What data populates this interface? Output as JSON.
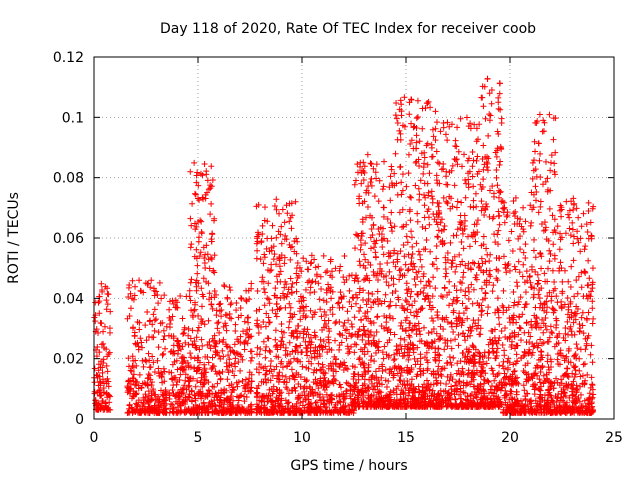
{
  "chart_data": {
    "type": "scatter",
    "title": "Day 118 of 2020, Rate Of TEC Index for receiver coob",
    "xlabel": "GPS time / hours",
    "ylabel": "ROTI / TECUs",
    "xlim": [
      0,
      25
    ],
    "ylim": [
      0,
      0.12
    ],
    "x_ticks": [
      0,
      5,
      10,
      15,
      20,
      25
    ],
    "x_tick_labels": [
      "0",
      "5",
      "10",
      "15",
      "20",
      "25"
    ],
    "y_ticks": [
      0,
      0.02,
      0.04,
      0.06,
      0.08,
      0.1,
      0.12
    ],
    "y_tick_labels": [
      "0",
      "0.02",
      "0.04",
      "0.06",
      "0.08",
      "0.1",
      "0.12"
    ],
    "grid": true,
    "marker": "+",
    "series_color": "#ff0000",
    "series": [
      {
        "name": "ROTI",
        "segments": [
          {
            "x_start": 0.0,
            "x_end": 0.8,
            "y_low": 0.003,
            "y_high": 0.045
          },
          {
            "x_start": 1.6,
            "x_end": 3.5,
            "y_low": 0.002,
            "y_high": 0.046
          },
          {
            "x_start": 3.6,
            "x_end": 4.6,
            "y_low": 0.002,
            "y_high": 0.042
          },
          {
            "x_start": 4.6,
            "x_end": 5.8,
            "y_low": 0.002,
            "y_high": 0.085
          },
          {
            "x_start": 5.8,
            "x_end": 7.6,
            "y_low": 0.002,
            "y_high": 0.045
          },
          {
            "x_start": 7.8,
            "x_end": 9.8,
            "y_low": 0.002,
            "y_high": 0.073
          },
          {
            "x_start": 9.8,
            "x_end": 12.5,
            "y_low": 0.002,
            "y_high": 0.055
          },
          {
            "x_start": 12.5,
            "x_end": 14.5,
            "y_low": 0.004,
            "y_high": 0.09
          },
          {
            "x_start": 14.5,
            "x_end": 16.5,
            "y_low": 0.004,
            "y_high": 0.107
          },
          {
            "x_start": 16.5,
            "x_end": 18.6,
            "y_low": 0.004,
            "y_high": 0.1
          },
          {
            "x_start": 18.6,
            "x_end": 19.6,
            "y_low": 0.004,
            "y_high": 0.113
          },
          {
            "x_start": 19.6,
            "x_end": 21.0,
            "y_low": 0.002,
            "y_high": 0.075
          },
          {
            "x_start": 21.0,
            "x_end": 22.2,
            "y_low": 0.002,
            "y_high": 0.101
          },
          {
            "x_start": 22.2,
            "x_end": 24.0,
            "y_low": 0.002,
            "y_high": 0.075
          }
        ]
      }
    ]
  }
}
